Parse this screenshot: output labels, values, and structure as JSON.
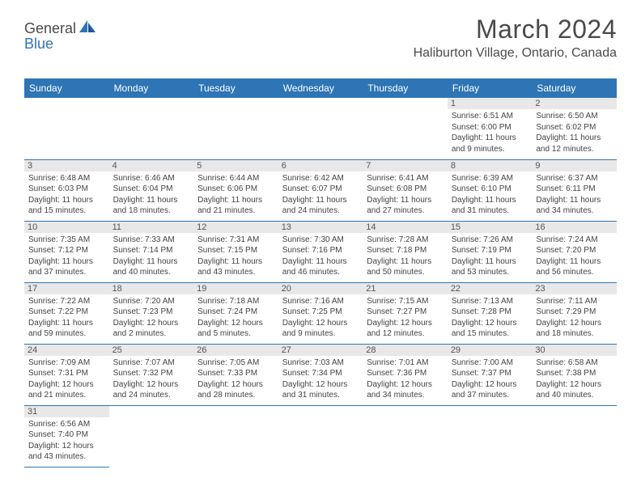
{
  "brand": {
    "general": "General",
    "blue": "Blue"
  },
  "title": "March 2024",
  "location": "Haliburton Village, Ontario, Canada",
  "header_bg": "#2e75b6",
  "days": [
    "Sunday",
    "Monday",
    "Tuesday",
    "Wednesday",
    "Thursday",
    "Friday",
    "Saturday"
  ],
  "weeks": [
    [
      null,
      null,
      null,
      null,
      null,
      {
        "n": "1",
        "sr": "Sunrise: 6:51 AM",
        "ss": "Sunset: 6:00 PM",
        "d1": "Daylight: 11 hours",
        "d2": "and 9 minutes."
      },
      {
        "n": "2",
        "sr": "Sunrise: 6:50 AM",
        "ss": "Sunset: 6:02 PM",
        "d1": "Daylight: 11 hours",
        "d2": "and 12 minutes."
      }
    ],
    [
      {
        "n": "3",
        "sr": "Sunrise: 6:48 AM",
        "ss": "Sunset: 6:03 PM",
        "d1": "Daylight: 11 hours",
        "d2": "and 15 minutes."
      },
      {
        "n": "4",
        "sr": "Sunrise: 6:46 AM",
        "ss": "Sunset: 6:04 PM",
        "d1": "Daylight: 11 hours",
        "d2": "and 18 minutes."
      },
      {
        "n": "5",
        "sr": "Sunrise: 6:44 AM",
        "ss": "Sunset: 6:06 PM",
        "d1": "Daylight: 11 hours",
        "d2": "and 21 minutes."
      },
      {
        "n": "6",
        "sr": "Sunrise: 6:42 AM",
        "ss": "Sunset: 6:07 PM",
        "d1": "Daylight: 11 hours",
        "d2": "and 24 minutes."
      },
      {
        "n": "7",
        "sr": "Sunrise: 6:41 AM",
        "ss": "Sunset: 6:08 PM",
        "d1": "Daylight: 11 hours",
        "d2": "and 27 minutes."
      },
      {
        "n": "8",
        "sr": "Sunrise: 6:39 AM",
        "ss": "Sunset: 6:10 PM",
        "d1": "Daylight: 11 hours",
        "d2": "and 31 minutes."
      },
      {
        "n": "9",
        "sr": "Sunrise: 6:37 AM",
        "ss": "Sunset: 6:11 PM",
        "d1": "Daylight: 11 hours",
        "d2": "and 34 minutes."
      }
    ],
    [
      {
        "n": "10",
        "sr": "Sunrise: 7:35 AM",
        "ss": "Sunset: 7:12 PM",
        "d1": "Daylight: 11 hours",
        "d2": "and 37 minutes."
      },
      {
        "n": "11",
        "sr": "Sunrise: 7:33 AM",
        "ss": "Sunset: 7:14 PM",
        "d1": "Daylight: 11 hours",
        "d2": "and 40 minutes."
      },
      {
        "n": "12",
        "sr": "Sunrise: 7:31 AM",
        "ss": "Sunset: 7:15 PM",
        "d1": "Daylight: 11 hours",
        "d2": "and 43 minutes."
      },
      {
        "n": "13",
        "sr": "Sunrise: 7:30 AM",
        "ss": "Sunset: 7:16 PM",
        "d1": "Daylight: 11 hours",
        "d2": "and 46 minutes."
      },
      {
        "n": "14",
        "sr": "Sunrise: 7:28 AM",
        "ss": "Sunset: 7:18 PM",
        "d1": "Daylight: 11 hours",
        "d2": "and 50 minutes."
      },
      {
        "n": "15",
        "sr": "Sunrise: 7:26 AM",
        "ss": "Sunset: 7:19 PM",
        "d1": "Daylight: 11 hours",
        "d2": "and 53 minutes."
      },
      {
        "n": "16",
        "sr": "Sunrise: 7:24 AM",
        "ss": "Sunset: 7:20 PM",
        "d1": "Daylight: 11 hours",
        "d2": "and 56 minutes."
      }
    ],
    [
      {
        "n": "17",
        "sr": "Sunrise: 7:22 AM",
        "ss": "Sunset: 7:22 PM",
        "d1": "Daylight: 11 hours",
        "d2": "and 59 minutes."
      },
      {
        "n": "18",
        "sr": "Sunrise: 7:20 AM",
        "ss": "Sunset: 7:23 PM",
        "d1": "Daylight: 12 hours",
        "d2": "and 2 minutes."
      },
      {
        "n": "19",
        "sr": "Sunrise: 7:18 AM",
        "ss": "Sunset: 7:24 PM",
        "d1": "Daylight: 12 hours",
        "d2": "and 5 minutes."
      },
      {
        "n": "20",
        "sr": "Sunrise: 7:16 AM",
        "ss": "Sunset: 7:25 PM",
        "d1": "Daylight: 12 hours",
        "d2": "and 9 minutes."
      },
      {
        "n": "21",
        "sr": "Sunrise: 7:15 AM",
        "ss": "Sunset: 7:27 PM",
        "d1": "Daylight: 12 hours",
        "d2": "and 12 minutes."
      },
      {
        "n": "22",
        "sr": "Sunrise: 7:13 AM",
        "ss": "Sunset: 7:28 PM",
        "d1": "Daylight: 12 hours",
        "d2": "and 15 minutes."
      },
      {
        "n": "23",
        "sr": "Sunrise: 7:11 AM",
        "ss": "Sunset: 7:29 PM",
        "d1": "Daylight: 12 hours",
        "d2": "and 18 minutes."
      }
    ],
    [
      {
        "n": "24",
        "sr": "Sunrise: 7:09 AM",
        "ss": "Sunset: 7:31 PM",
        "d1": "Daylight: 12 hours",
        "d2": "and 21 minutes."
      },
      {
        "n": "25",
        "sr": "Sunrise: 7:07 AM",
        "ss": "Sunset: 7:32 PM",
        "d1": "Daylight: 12 hours",
        "d2": "and 24 minutes."
      },
      {
        "n": "26",
        "sr": "Sunrise: 7:05 AM",
        "ss": "Sunset: 7:33 PM",
        "d1": "Daylight: 12 hours",
        "d2": "and 28 minutes."
      },
      {
        "n": "27",
        "sr": "Sunrise: 7:03 AM",
        "ss": "Sunset: 7:34 PM",
        "d1": "Daylight: 12 hours",
        "d2": "and 31 minutes."
      },
      {
        "n": "28",
        "sr": "Sunrise: 7:01 AM",
        "ss": "Sunset: 7:36 PM",
        "d1": "Daylight: 12 hours",
        "d2": "and 34 minutes."
      },
      {
        "n": "29",
        "sr": "Sunrise: 7:00 AM",
        "ss": "Sunset: 7:37 PM",
        "d1": "Daylight: 12 hours",
        "d2": "and 37 minutes."
      },
      {
        "n": "30",
        "sr": "Sunrise: 6:58 AM",
        "ss": "Sunset: 7:38 PM",
        "d1": "Daylight: 12 hours",
        "d2": "and 40 minutes."
      }
    ],
    [
      {
        "n": "31",
        "sr": "Sunrise: 6:56 AM",
        "ss": "Sunset: 7:40 PM",
        "d1": "Daylight: 12 hours",
        "d2": "and 43 minutes."
      },
      null,
      null,
      null,
      null,
      null,
      null
    ]
  ]
}
